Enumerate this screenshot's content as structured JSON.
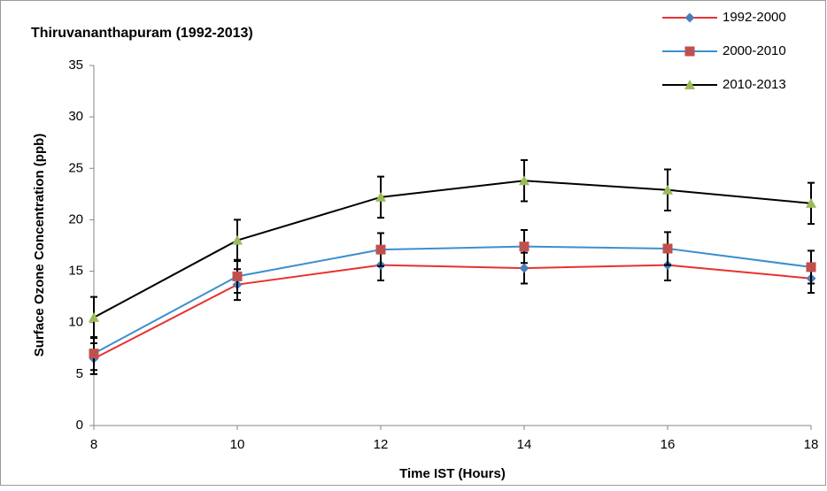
{
  "chart_data": {
    "type": "line",
    "title": "Thiruvananthapuram (1992-2013)",
    "x_label": "Time IST (Hours)",
    "y_label": "Surface Ozone Concentration (ppb)",
    "x": [
      8,
      10,
      12,
      14,
      16,
      18
    ],
    "xlim": [
      8,
      18
    ],
    "xticks": [
      8,
      10,
      12,
      14,
      16,
      18
    ],
    "ylim": [
      0,
      35
    ],
    "yticks": [
      0,
      5,
      10,
      15,
      20,
      25,
      30,
      35
    ],
    "grid": false,
    "legend": "top-right",
    "error_bar_color": "#000000",
    "series": [
      {
        "name": "1992-2000",
        "color": "#e8312f",
        "marker": "diamond",
        "marker_color": "#4a7ebb",
        "values": [
          6.5,
          13.7,
          15.6,
          15.3,
          15.6,
          14.3
        ],
        "errors": [
          1.5,
          1.5,
          1.5,
          1.5,
          1.5,
          1.4
        ]
      },
      {
        "name": "2000-2010",
        "color": "#3b8fd0",
        "marker": "square",
        "marker_color": "#c0504d",
        "values": [
          7.0,
          14.5,
          17.1,
          17.4,
          17.2,
          15.4
        ],
        "errors": [
          1.6,
          1.6,
          1.6,
          1.6,
          1.6,
          1.6
        ]
      },
      {
        "name": "2010-2013",
        "color": "#000000",
        "marker": "triangle",
        "marker_color": "#9bbb59",
        "values": [
          10.5,
          18.0,
          22.2,
          23.8,
          22.9,
          21.6
        ],
        "errors": [
          2.0,
          2.0,
          2.0,
          2.0,
          2.0,
          2.0
        ]
      }
    ]
  }
}
